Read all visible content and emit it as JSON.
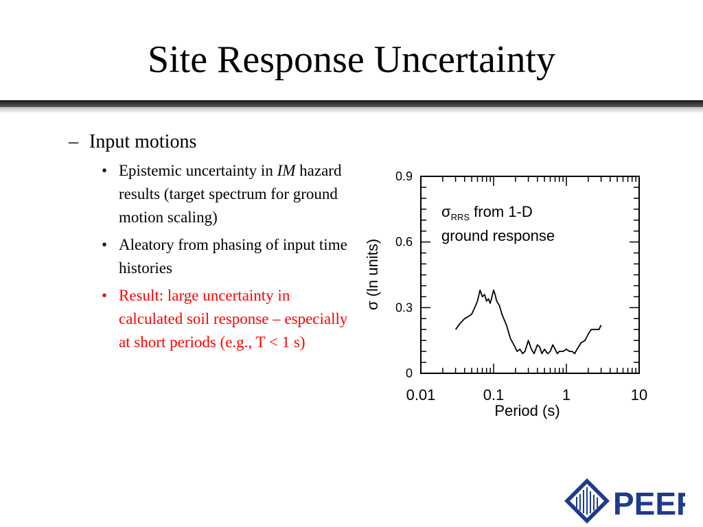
{
  "slide": {
    "title": "Site Response Uncertainty",
    "level1": {
      "marker": "–",
      "text": "Input motions"
    },
    "bullets": [
      {
        "marker": "•",
        "prefix": "Epistemic uncertainty in ",
        "emph": "IM",
        "suffix": " hazard results (target spectrum for ground motion scaling)"
      },
      {
        "marker": "•",
        "text": "Aleatory from phasing of input time histories"
      },
      {
        "marker": "•",
        "text": "Result: large uncertainty in calculated soil response – especially at short periods (e.g., T < 1 s)",
        "color": "#ff0000"
      }
    ]
  },
  "chart_data": {
    "type": "line",
    "xlabel": "Period (s)",
    "ylabel_symbol": "σ",
    "ylabel_rest": " (ln units)",
    "x_scale": "log",
    "xlim": [
      0.01,
      10
    ],
    "ylim": [
      0,
      0.9
    ],
    "x_ticks": [
      {
        "value": 0.01,
        "label": "0.01"
      },
      {
        "value": 0.1,
        "label": "0.1"
      },
      {
        "value": 1,
        "label": "1"
      },
      {
        "value": 10,
        "label": "10"
      }
    ],
    "y_ticks": [
      {
        "value": 0,
        "label": "0"
      },
      {
        "value": 0.3,
        "label": "0.3"
      },
      {
        "value": 0.6,
        "label": "0.6"
      },
      {
        "value": 0.9,
        "label": "0.9"
      }
    ],
    "annotation": {
      "sigma": "σ",
      "subscript": "RRS",
      "line1_rest": " from 1-D",
      "line2": "ground response"
    },
    "series": [
      {
        "color": "#000000",
        "x": [
          0.03,
          0.035,
          0.04,
          0.045,
          0.05,
          0.055,
          0.06,
          0.065,
          0.07,
          0.075,
          0.08,
          0.085,
          0.09,
          0.095,
          0.1,
          0.105,
          0.11,
          0.12,
          0.13,
          0.15,
          0.17,
          0.19,
          0.21,
          0.23,
          0.25,
          0.27,
          0.3,
          0.33,
          0.36,
          0.4,
          0.43,
          0.46,
          0.5,
          0.55,
          0.6,
          0.65,
          0.7,
          0.75,
          0.8,
          0.9,
          1.0,
          1.1,
          1.2,
          1.3,
          1.4,
          1.6,
          1.8,
          2.0,
          2.2,
          2.5,
          2.8,
          3.0
        ],
        "y": [
          0.2,
          0.23,
          0.25,
          0.26,
          0.27,
          0.3,
          0.33,
          0.38,
          0.35,
          0.36,
          0.33,
          0.34,
          0.32,
          0.35,
          0.38,
          0.36,
          0.33,
          0.31,
          0.27,
          0.22,
          0.16,
          0.13,
          0.1,
          0.11,
          0.09,
          0.1,
          0.15,
          0.11,
          0.09,
          0.13,
          0.12,
          0.09,
          0.11,
          0.09,
          0.1,
          0.13,
          0.11,
          0.09,
          0.1,
          0.1,
          0.11,
          0.1,
          0.1,
          0.09,
          0.11,
          0.14,
          0.15,
          0.18,
          0.2,
          0.2,
          0.2,
          0.22
        ]
      }
    ]
  },
  "logo": {
    "text": "PEER",
    "color": "#1e3c8c"
  }
}
